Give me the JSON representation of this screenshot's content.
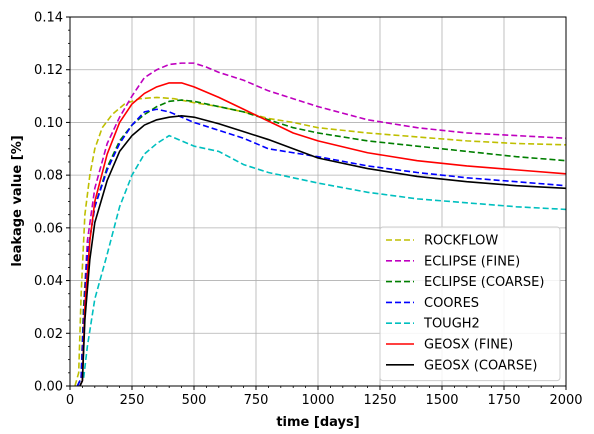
{
  "chart_data": {
    "type": "line",
    "xlabel": "time [days]",
    "ylabel": "leakage value [%]",
    "xlim": [
      0,
      2000
    ],
    "ylim": [
      0,
      0.14
    ],
    "grid": true,
    "legend_position": "lower-right",
    "x_ticks": [
      "0",
      "250",
      "500",
      "750",
      "1000",
      "1250",
      "1500",
      "1750",
      "2000"
    ],
    "y_ticks": [
      "0.00",
      "0.02",
      "0.04",
      "0.06",
      "0.08",
      "0.10",
      "0.12",
      "0.14"
    ],
    "series": [
      {
        "name": "ROCKFLOW",
        "color": "#bfbf00",
        "dash": "dashed",
        "points": [
          [
            20,
            0
          ],
          [
            35,
            0.005
          ],
          [
            45,
            0.035
          ],
          [
            60,
            0.065
          ],
          [
            80,
            0.08
          ],
          [
            100,
            0.09
          ],
          [
            130,
            0.098
          ],
          [
            170,
            0.103
          ],
          [
            220,
            0.107
          ],
          [
            280,
            0.109
          ],
          [
            350,
            0.1095
          ],
          [
            420,
            0.109
          ],
          [
            500,
            0.1075
          ],
          [
            600,
            0.106
          ],
          [
            700,
            0.104
          ],
          [
            800,
            0.1015
          ],
          [
            900,
            0.1
          ],
          [
            1000,
            0.098
          ],
          [
            1200,
            0.096
          ],
          [
            1400,
            0.0945
          ],
          [
            1600,
            0.093
          ],
          [
            1800,
            0.092
          ],
          [
            2000,
            0.0915
          ]
        ]
      },
      {
        "name": "ECLIPSE (FINE)",
        "color": "#bf00bf",
        "dash": "dashed",
        "points": [
          [
            30,
            0
          ],
          [
            45,
            0.003
          ],
          [
            55,
            0.03
          ],
          [
            70,
            0.055
          ],
          [
            100,
            0.075
          ],
          [
            150,
            0.092
          ],
          [
            200,
            0.102
          ],
          [
            250,
            0.11
          ],
          [
            300,
            0.117
          ],
          [
            350,
            0.12
          ],
          [
            400,
            0.122
          ],
          [
            450,
            0.1225
          ],
          [
            500,
            0.1225
          ],
          [
            550,
            0.121
          ],
          [
            600,
            0.119
          ],
          [
            700,
            0.116
          ],
          [
            800,
            0.112
          ],
          [
            900,
            0.109
          ],
          [
            1000,
            0.106
          ],
          [
            1200,
            0.101
          ],
          [
            1400,
            0.098
          ],
          [
            1600,
            0.096
          ],
          [
            1800,
            0.095
          ],
          [
            2000,
            0.094
          ]
        ]
      },
      {
        "name": "ECLIPSE (COARSE)",
        "color": "#007f00",
        "dash": "dashed",
        "points": [
          [
            30,
            0
          ],
          [
            45,
            0.003
          ],
          [
            55,
            0.03
          ],
          [
            70,
            0.05
          ],
          [
            100,
            0.068
          ],
          [
            150,
            0.083
          ],
          [
            200,
            0.093
          ],
          [
            250,
            0.099
          ],
          [
            300,
            0.103
          ],
          [
            350,
            0.106
          ],
          [
            400,
            0.108
          ],
          [
            450,
            0.1085
          ],
          [
            500,
            0.108
          ],
          [
            600,
            0.106
          ],
          [
            700,
            0.104
          ],
          [
            800,
            0.101
          ],
          [
            900,
            0.098
          ],
          [
            1000,
            0.096
          ],
          [
            1200,
            0.093
          ],
          [
            1400,
            0.091
          ],
          [
            1600,
            0.089
          ],
          [
            1800,
            0.087
          ],
          [
            2000,
            0.0855
          ]
        ]
      },
      {
        "name": "COORES",
        "color": "#0000ff",
        "dash": "dashed",
        "points": [
          [
            30,
            0
          ],
          [
            45,
            0.003
          ],
          [
            55,
            0.025
          ],
          [
            70,
            0.05
          ],
          [
            100,
            0.068
          ],
          [
            150,
            0.082
          ],
          [
            200,
            0.092
          ],
          [
            250,
            0.099
          ],
          [
            300,
            0.104
          ],
          [
            350,
            0.105
          ],
          [
            400,
            0.104
          ],
          [
            450,
            0.102
          ],
          [
            500,
            0.1
          ],
          [
            600,
            0.097
          ],
          [
            700,
            0.094
          ],
          [
            800,
            0.09
          ],
          [
            900,
            0.0885
          ],
          [
            1000,
            0.087
          ],
          [
            1200,
            0.0835
          ],
          [
            1400,
            0.081
          ],
          [
            1600,
            0.079
          ],
          [
            1800,
            0.0775
          ],
          [
            2000,
            0.076
          ]
        ]
      },
      {
        "name": "TOUGH2",
        "color": "#00bfbf",
        "dash": "dashed",
        "points": [
          [
            40,
            0
          ],
          [
            55,
            0.003
          ],
          [
            70,
            0.015
          ],
          [
            100,
            0.033
          ],
          [
            150,
            0.05
          ],
          [
            200,
            0.068
          ],
          [
            250,
            0.08
          ],
          [
            300,
            0.088
          ],
          [
            350,
            0.092
          ],
          [
            400,
            0.095
          ],
          [
            450,
            0.093
          ],
          [
            500,
            0.091
          ],
          [
            600,
            0.089
          ],
          [
            700,
            0.084
          ],
          [
            800,
            0.081
          ],
          [
            900,
            0.079
          ],
          [
            1000,
            0.077
          ],
          [
            1200,
            0.0735
          ],
          [
            1400,
            0.071
          ],
          [
            1600,
            0.0695
          ],
          [
            1800,
            0.068
          ],
          [
            2000,
            0.067
          ]
        ]
      },
      {
        "name": "GEOSX (FINE)",
        "color": "#ff0000",
        "dash": "solid",
        "points": [
          [
            40,
            0
          ],
          [
            50,
            0.002
          ],
          [
            60,
            0.03
          ],
          [
            80,
            0.055
          ],
          [
            100,
            0.07
          ],
          [
            150,
            0.088
          ],
          [
            200,
            0.1
          ],
          [
            250,
            0.107
          ],
          [
            300,
            0.111
          ],
          [
            350,
            0.1135
          ],
          [
            400,
            0.115
          ],
          [
            450,
            0.115
          ],
          [
            500,
            0.1135
          ],
          [
            600,
            0.1095
          ],
          [
            700,
            0.105
          ],
          [
            800,
            0.1005
          ],
          [
            900,
            0.096
          ],
          [
            1000,
            0.093
          ],
          [
            1200,
            0.0885
          ],
          [
            1400,
            0.0855
          ],
          [
            1600,
            0.0835
          ],
          [
            1800,
            0.082
          ],
          [
            2000,
            0.0805
          ]
        ]
      },
      {
        "name": "GEOSX (COARSE)",
        "color": "#000000",
        "dash": "solid",
        "points": [
          [
            40,
            0
          ],
          [
            50,
            0.002
          ],
          [
            60,
            0.025
          ],
          [
            80,
            0.048
          ],
          [
            100,
            0.062
          ],
          [
            150,
            0.078
          ],
          [
            200,
            0.089
          ],
          [
            250,
            0.095
          ],
          [
            300,
            0.099
          ],
          [
            350,
            0.101
          ],
          [
            400,
            0.102
          ],
          [
            450,
            0.1025
          ],
          [
            500,
            0.102
          ],
          [
            600,
            0.0995
          ],
          [
            700,
            0.0965
          ],
          [
            800,
            0.0935
          ],
          [
            900,
            0.09
          ],
          [
            1000,
            0.0865
          ],
          [
            1200,
            0.0825
          ],
          [
            1400,
            0.0795
          ],
          [
            1600,
            0.0775
          ],
          [
            1800,
            0.076
          ],
          [
            2000,
            0.075
          ]
        ]
      }
    ]
  }
}
